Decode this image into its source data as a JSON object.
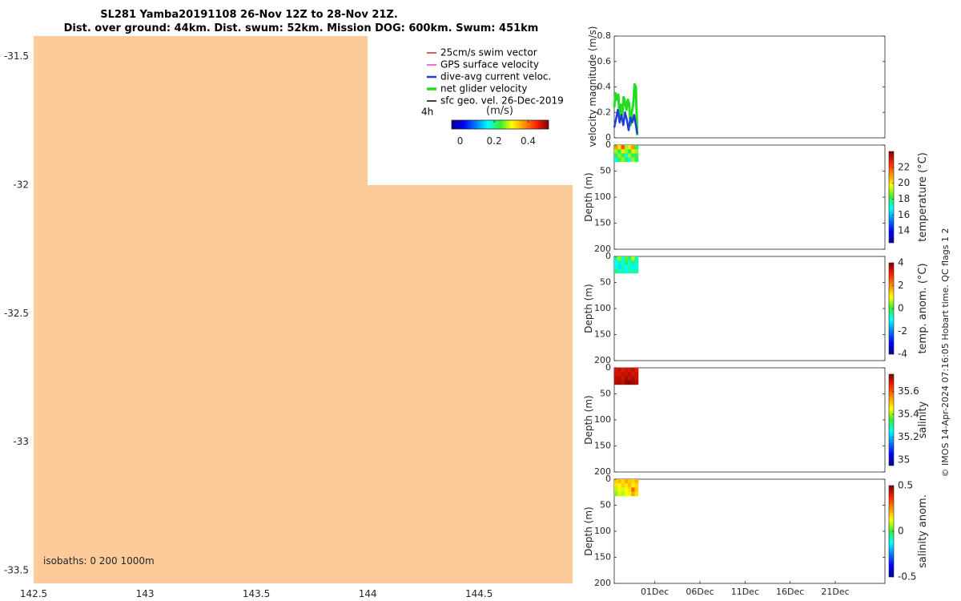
{
  "title": {
    "line1": "SL281 Yamba20191108 26-Nov 12Z to 28-Nov 21Z.",
    "line2": "Dist. over ground: 44km. Dist. swum: 52km. Mission DOG: 600km. Swum: 451km"
  },
  "map": {
    "isobaths_label": "isobaths: 0   200  1000m",
    "time_step_label": "4h",
    "legend": [
      {
        "label": "25cm/s swim vector",
        "color": "#d62728"
      },
      {
        "label": "GPS surface velocity",
        "color": "#ff33cc"
      },
      {
        "label": "dive-avg current veloc.",
        "color": "#1f3fd6"
      },
      {
        "label": "net glider velocity",
        "color": "#22dd22"
      },
      {
        "label": "sfc geo. vel. 26-Dec-2019",
        "color": "#000000"
      }
    ],
    "colorbar": {
      "label": "(m/s)",
      "ticks": [
        "0",
        "0.2",
        "0.4"
      ],
      "range": [
        -0.05,
        0.52
      ]
    },
    "land_color": "#fdcb9a",
    "colors": {
      "background": "#ffffff"
    }
  },
  "copyright": "© IMOS 14-Apr-2024 07:16:05 Hobart time. QC flags 1  2",
  "chart_data": [
    {
      "type": "map",
      "x": {
        "ticks": [
          "142.5",
          "143",
          "143.5",
          "144",
          "144.5"
        ],
        "values": [
          142.5,
          143,
          143.5,
          144,
          144.5
        ],
        "range": [
          142.5,
          144.92
        ]
      },
      "y": {
        "ticks": [
          "-31.5",
          "-32",
          "-32.5",
          "-33",
          "-33.5"
        ],
        "values": [
          -31.5,
          -32,
          -32.5,
          -33,
          -33.5
        ],
        "range": [
          -33.55,
          -31.42
        ]
      },
      "land": [
        [
          142.5,
          -31.42
        ],
        [
          144.0,
          -31.42
        ],
        [
          144.0,
          -32.0
        ],
        [
          144.92,
          -32.0
        ],
        [
          144.92,
          -33.55
        ],
        [
          142.5,
          -33.55
        ]
      ]
    },
    {
      "type": "line",
      "ylabel": "velocity magnitude (m/s)",
      "ylim": [
        0,
        0.8
      ],
      "yticks": [
        "0",
        "0.2",
        "0.4",
        "0.6",
        "0.8"
      ],
      "x_range_days": [
        0,
        30
      ],
      "series": [
        {
          "color": "#22dd22",
          "x": [
            0.0,
            0.15,
            0.3,
            0.45,
            0.6,
            0.75,
            0.9,
            1.05,
            1.2,
            1.35,
            1.5,
            1.65,
            1.8,
            1.95,
            2.1,
            2.25,
            2.4,
            2.55
          ],
          "y": [
            0.24,
            0.35,
            0.3,
            0.34,
            0.15,
            0.26,
            0.18,
            0.32,
            0.28,
            0.22,
            0.3,
            0.27,
            0.1,
            0.2,
            0.26,
            0.42,
            0.4,
            0.02
          ]
        },
        {
          "color": "#1f3fd6",
          "x": [
            0.0,
            0.2,
            0.4,
            0.6,
            0.8,
            1.0,
            1.2,
            1.4,
            1.6,
            1.8,
            2.0,
            2.2,
            2.4,
            2.55
          ],
          "y": [
            0.08,
            0.15,
            0.22,
            0.12,
            0.18,
            0.1,
            0.2,
            0.14,
            0.06,
            0.16,
            0.12,
            0.18,
            0.1,
            0.03
          ]
        }
      ]
    },
    {
      "type": "heatmap",
      "ylabel": "Depth (m)",
      "cblabel": "temperature (°C)",
      "yticks": [
        "0",
        "50",
        "100",
        "150",
        "200"
      ],
      "clim": [
        12.5,
        24
      ],
      "cbticks": [
        "14",
        "16",
        "18",
        "20",
        "22"
      ],
      "x_range_days": [
        0,
        2.65
      ],
      "depth_range": [
        0,
        32
      ],
      "rows": [
        [
          21,
          20,
          22,
          19,
          20,
          21,
          18
        ],
        [
          19,
          18,
          20,
          19,
          18,
          20,
          19
        ],
        [
          18,
          19,
          18,
          17,
          19,
          18,
          18
        ],
        [
          17,
          18,
          19,
          18,
          17,
          19,
          18
        ]
      ]
    },
    {
      "type": "heatmap",
      "ylabel": "Depth (m)",
      "cblabel": "temp. anom. (°C)",
      "yticks": [
        "0",
        "50",
        "100",
        "150",
        "200"
      ],
      "clim": [
        -4,
        4
      ],
      "cbticks": [
        "-4",
        "-2",
        "0",
        "2",
        "4"
      ],
      "x_range_days": [
        0,
        2.65
      ],
      "depth_range": [
        0,
        32
      ],
      "rows": [
        [
          -0.5,
          0.5,
          -0.8,
          0.2,
          -0.4,
          0.6,
          -0.6
        ],
        [
          -1.0,
          -0.6,
          -0.9,
          -0.3,
          -0.8,
          -0.4,
          -0.7
        ],
        [
          -0.9,
          -1.2,
          -0.7,
          -1.0,
          -0.6,
          -1.1,
          -0.8
        ],
        [
          -0.4,
          -0.8,
          -0.6,
          -0.9,
          -0.5,
          -0.7,
          -0.6
        ]
      ]
    },
    {
      "type": "heatmap",
      "ylabel": "Depth (m)",
      "cblabel": "salinity",
      "yticks": [
        "0",
        "50",
        "100",
        "150",
        "200"
      ],
      "clim": [
        34.95,
        35.75
      ],
      "cbticks": [
        "35",
        "35.2",
        "35.4",
        "35.6"
      ],
      "x_range_days": [
        0,
        2.65
      ],
      "depth_range": [
        0,
        32
      ],
      "rows": [
        [
          35.68,
          35.7,
          35.67,
          35.69,
          35.68,
          35.7,
          35.67
        ],
        [
          35.69,
          35.68,
          35.7,
          35.69,
          35.71,
          35.68,
          35.7
        ],
        [
          35.7,
          35.71,
          35.69,
          35.72,
          35.7,
          35.71,
          35.69
        ],
        [
          35.71,
          35.72,
          35.7,
          35.73,
          35.74,
          35.72,
          35.71
        ]
      ]
    },
    {
      "type": "heatmap",
      "ylabel": "Depth (m)",
      "cblabel": "salinity anom.",
      "yticks": [
        "0",
        "50",
        "100",
        "150",
        "200"
      ],
      "clim": [
        -0.5,
        0.5
      ],
      "cbticks": [
        "-0.5",
        "0",
        "0.5"
      ],
      "x_range_days": [
        0,
        2.65
      ],
      "depth_range": [
        0,
        32
      ],
      "xticks": [
        "01Dec",
        "06Dec",
        "11Dec",
        "16Dec",
        "21Dec"
      ],
      "xtick_days": [
        4.5,
        9.5,
        14.5,
        19.5,
        24.5
      ],
      "rows": [
        [
          0.18,
          0.2,
          0.16,
          0.22,
          0.19,
          0.17,
          0.21
        ],
        [
          0.16,
          0.12,
          0.18,
          0.15,
          0.2,
          0.14,
          0.17
        ],
        [
          0.08,
          0.14,
          0.1,
          0.12,
          0.16,
          0.3,
          0.18
        ],
        [
          0.05,
          0.1,
          0.08,
          0.12,
          0.14,
          0.22,
          0.15
        ]
      ]
    }
  ]
}
